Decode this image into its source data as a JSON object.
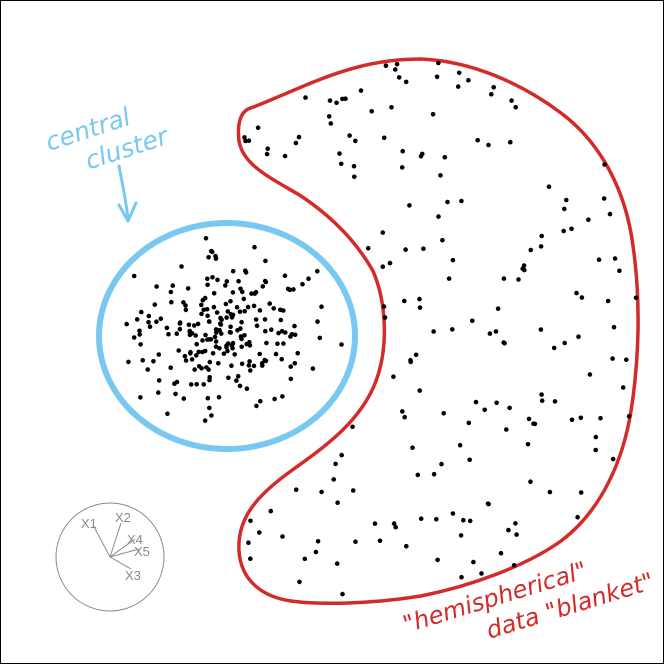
{
  "annotations": {
    "central_cluster": {
      "line1": "central",
      "line2": "cluster",
      "color": "#78c8f0"
    },
    "hemispherical": {
      "line1": "\"hemispherical\"",
      "line2": "data \"blanket\"",
      "color": "#d42a2a"
    }
  },
  "point_color": "#000000",
  "biplot": {
    "axes": [
      {
        "label": "X1"
      },
      {
        "label": "X2"
      },
      {
        "label": "X4"
      },
      {
        "label": "X5"
      },
      {
        "label": "X3"
      }
    ],
    "circle_color": "#8a8a8a"
  }
}
